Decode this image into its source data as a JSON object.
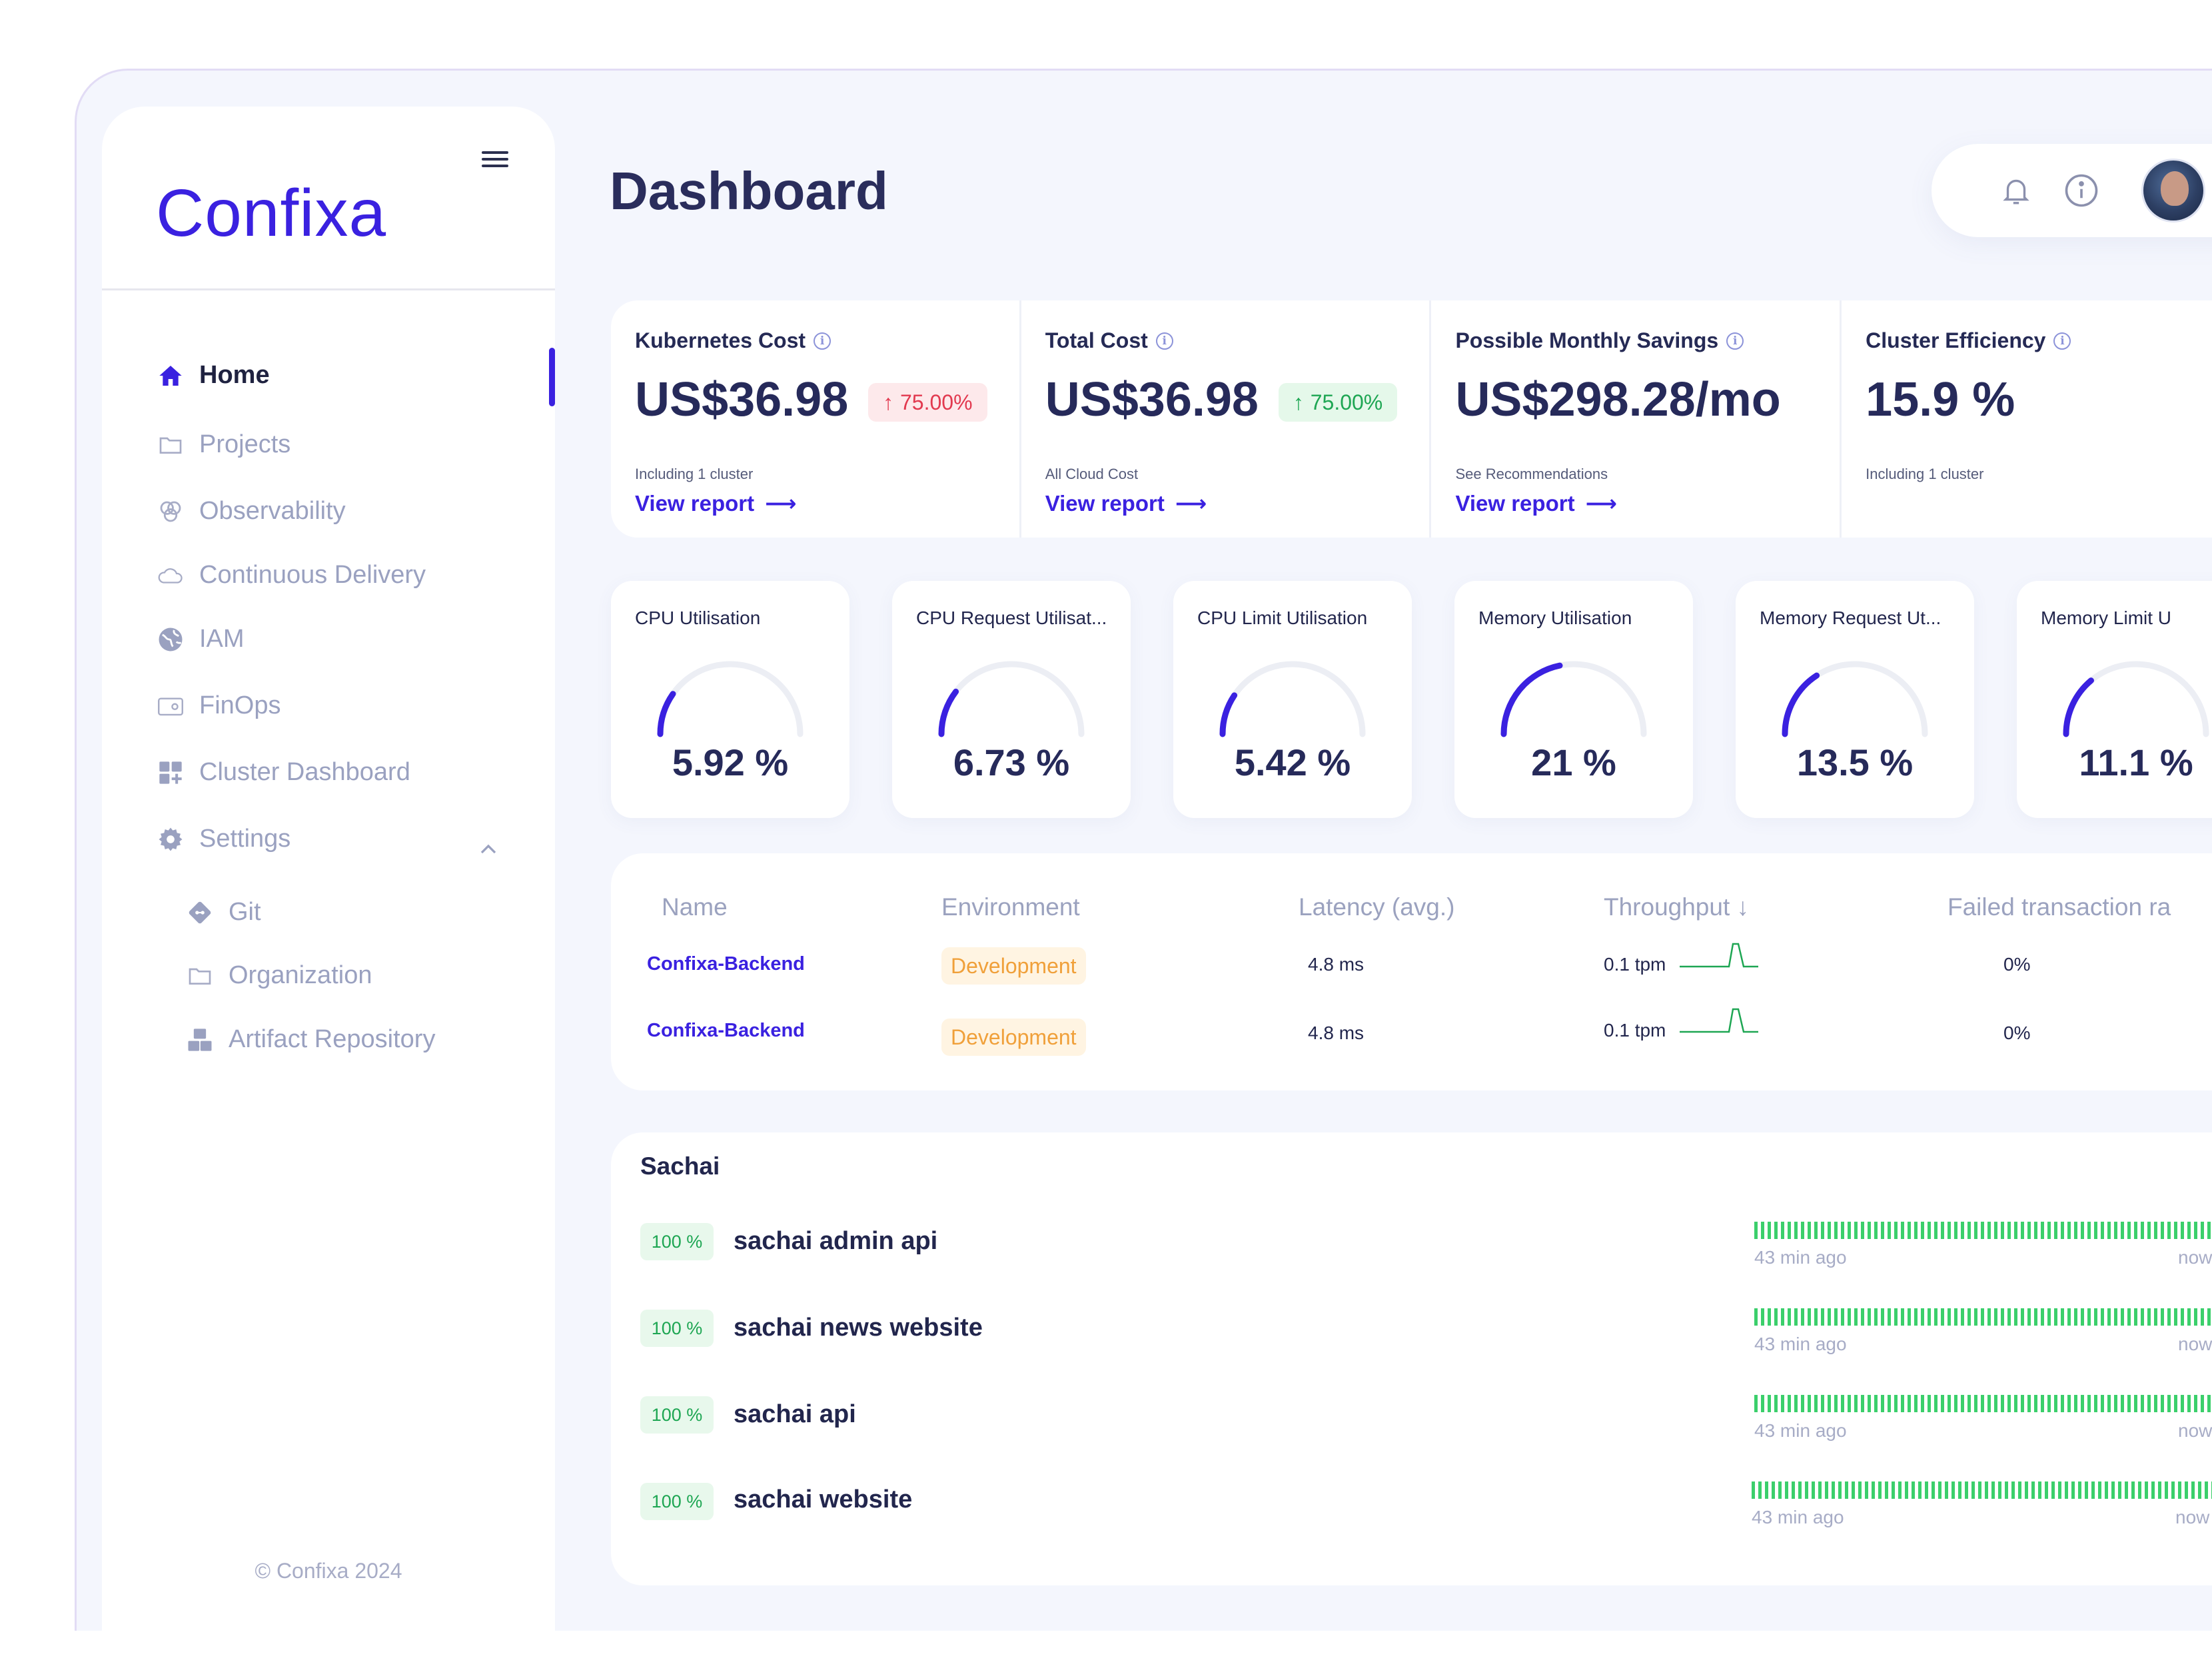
{
  "app": {
    "logo": "Confixa"
  },
  "sidebar": {
    "items": [
      {
        "label": "Home",
        "icon": "home-icon"
      },
      {
        "label": "Projects",
        "icon": "folder-icon"
      },
      {
        "label": "Observability",
        "icon": "observability-icon"
      },
      {
        "label": "Continuous Delivery",
        "icon": "cloud-icon"
      },
      {
        "label": "IAM",
        "icon": "globe-icon"
      },
      {
        "label": "FinOps",
        "icon": "wallet-icon"
      },
      {
        "label": "Cluster Dashboard",
        "icon": "grid-plus-icon"
      },
      {
        "label": "Settings",
        "icon": "gear-icon"
      }
    ],
    "settings_children": [
      {
        "label": "Git",
        "icon": "git-icon"
      },
      {
        "label": "Organization",
        "icon": "folder-icon"
      },
      {
        "label": "Artifact Repository",
        "icon": "boxes-icon"
      }
    ],
    "footer": "Confixa 2024",
    "accent": "#3a21e0"
  },
  "header": {
    "title": "Dashboard"
  },
  "cost_cards": [
    {
      "label": "Kubernetes Cost",
      "value": "US$36.98",
      "badge": "75.00%",
      "badge_color": "red",
      "sub": "Including 1 cluster",
      "link": "View report"
    },
    {
      "label": "Total Cost",
      "value": "US$36.98",
      "badge": "75.00%",
      "badge_color": "green",
      "sub": "All Cloud Cost",
      "link": "View report"
    },
    {
      "label": "Possible Monthly Savings",
      "value": "US$298.28/mo",
      "sub": "See Recommendations",
      "link": "View report"
    },
    {
      "label": "Cluster Efficiency",
      "value": "15.9 %",
      "sub": "Including 1 cluster"
    }
  ],
  "gauges": [
    {
      "title": "CPU Utilisation",
      "value": "5.92 %",
      "percent": 5.92
    },
    {
      "title": "CPU Request Utilisat...",
      "value": "6.73 %",
      "percent": 6.73
    },
    {
      "title": "CPU Limit Utilisation",
      "value": "5.42 %",
      "percent": 5.42
    },
    {
      "title": "Memory Utilisation",
      "value": "21 %",
      "percent": 21
    },
    {
      "title": "Memory Request Ut...",
      "value": "13.5 %",
      "percent": 13.5
    },
    {
      "title": "Memory Limit U",
      "value": "11.1 %",
      "percent": 11.1
    }
  ],
  "table": {
    "headers": [
      "Name",
      "Environment",
      "Latency (avg.)",
      "Throughput ↓",
      "Failed transaction ra"
    ],
    "rows": [
      {
        "name": "Confixa-Backend",
        "environment": "Development",
        "latency": "4.8 ms",
        "throughput": "0.1 tpm",
        "failed": "0%"
      },
      {
        "name": "Confixa-Backend",
        "environment": "Development",
        "latency": "4.8 ms",
        "throughput": "0.1 tpm",
        "failed": "0%"
      }
    ]
  },
  "uptime": {
    "title": "Sachai",
    "services": [
      {
        "percent": "100 %",
        "name": "sachai admin api",
        "ago": "43 min ago",
        "now": "now"
      },
      {
        "percent": "100 %",
        "name": "sachai news website",
        "ago": "43 min ago",
        "now": "now"
      },
      {
        "percent": "100 %",
        "name": "sachai api",
        "ago": "43 min ago",
        "now": "now"
      },
      {
        "percent": "100 %",
        "name": "sachai website",
        "ago": "43 min ago",
        "now": "now"
      }
    ]
  }
}
